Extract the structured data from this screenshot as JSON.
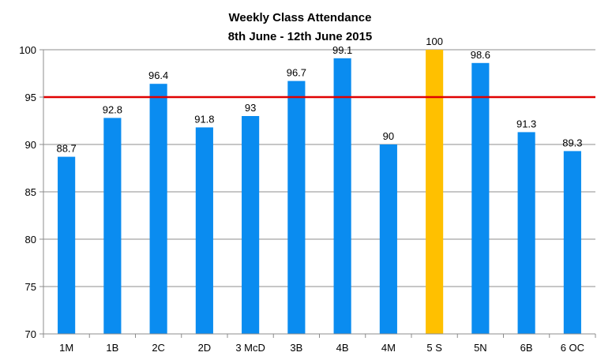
{
  "chart_data": {
    "type": "bar",
    "title": "Weekly Class  Attendance",
    "subtitle": "8th June - 12th June 2015",
    "xlabel": "",
    "ylabel": "",
    "categories": [
      "1M",
      "1B",
      "2C",
      "2D",
      "3 McD",
      "3B",
      "4B",
      "4M",
      "5 S",
      "5N",
      "6B",
      "6 OC"
    ],
    "values": [
      88.7,
      92.8,
      96.4,
      91.8,
      93,
      96.7,
      99.1,
      90,
      100,
      98.6,
      91.3,
      89.3
    ],
    "data_labels": [
      "88.7",
      "92.8",
      "96.4",
      "91.8",
      "93",
      "96.7",
      "99.1",
      "90",
      "100",
      "98.6",
      "91.3",
      "89.3"
    ],
    "ylim": [
      70,
      100
    ],
    "yticks": [
      "70",
      "75",
      "80",
      "85",
      "90",
      "95",
      "100"
    ],
    "reference_line": {
      "value": 95,
      "color": "#e00000"
    },
    "grid": true,
    "legend": "none",
    "colors": {
      "bar": "#0a8cf0",
      "highlight_bar": "#ffc000",
      "highlight_category": "5 S",
      "grid": "#8c8c8c",
      "axis": "#8c8c8c"
    }
  }
}
